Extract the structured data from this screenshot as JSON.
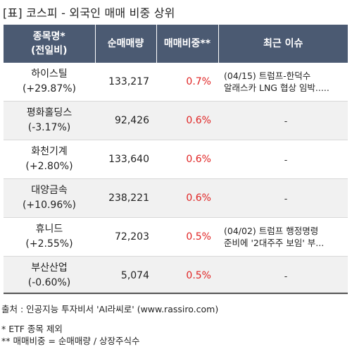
{
  "title": "[표] 코스피 - 외국인 매매 비중 상위",
  "table": {
    "headers": {
      "name_line1": "종목명*",
      "name_line2": "(전일비)",
      "volume": "순매매량",
      "ratio": "매매비중**",
      "issue": "최근 이슈"
    },
    "rows": [
      {
        "name": "하이스틸",
        "change": "(+29.87%)",
        "volume": "133,217",
        "ratio": "0.7%",
        "issue_line1": "(04/15) 트럼프-한덕수",
        "issue_line2": "알래스카 LNG 협상 임박....."
      },
      {
        "name": "평화홀딩스",
        "change": "(-3.17%)",
        "volume": "92,426",
        "ratio": "0.6%",
        "issue_line1": "-",
        "issue_line2": ""
      },
      {
        "name": "화천기계",
        "change": "(+2.80%)",
        "volume": "133,640",
        "ratio": "0.6%",
        "issue_line1": "-",
        "issue_line2": ""
      },
      {
        "name": "대양금속",
        "change": "(+10.96%)",
        "volume": "238,221",
        "ratio": "0.6%",
        "issue_line1": "-",
        "issue_line2": ""
      },
      {
        "name": "휴니드",
        "change": "(+2.55%)",
        "volume": "72,203",
        "ratio": "0.5%",
        "issue_line1": "(04/02) 트럼프 행정명령",
        "issue_line2": "준비에 '2대주주 보임' 부..."
      },
      {
        "name": "부산산업",
        "change": "(-0.60%)",
        "volume": "5,074",
        "ratio": "0.5%",
        "issue_line1": "-",
        "issue_line2": ""
      }
    ]
  },
  "source": "출처 : 인공지능 투자비서 'AI라씨로' (www.rassiro.com)",
  "notes": [
    "* ETF 종목 제외",
    "** 매매비중 = 순매매량 / 상장주식수"
  ],
  "colors": {
    "header_bg": "#4b5a72",
    "ratio_text": "#e02424",
    "alt_row_bg": "#f1f1f1"
  }
}
